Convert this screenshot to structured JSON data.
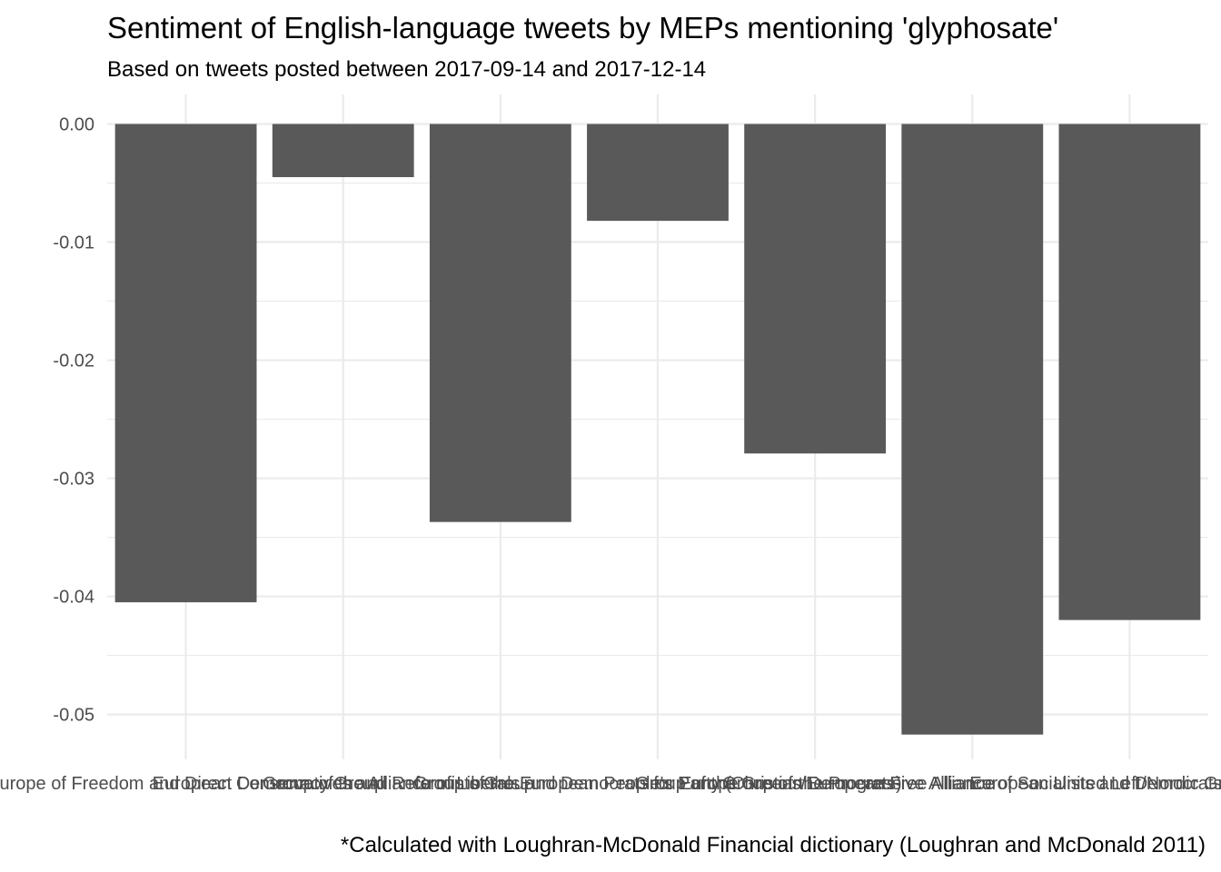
{
  "chart_data": {
    "type": "bar",
    "title": "Sentiment of English-language tweets by MEPs mentioning 'glyphosate'",
    "subtitle": "Based on tweets posted between 2017-09-14 and 2017-12-14",
    "caption": "*Calculated with Loughran-McDonald Financial dictionary (Loughran and McDonald 2011)",
    "xlabel": "",
    "ylabel": "",
    "categories": [
      "Europe of Freedom and Direct Democracy Group",
      "European Conservatives and Reformists Group",
      "Group of the Alliance of Liberals and Democrats for Europe",
      "Group of the European People's Party (Christian Democrats)",
      "Group of the Greens/European Free Alliance",
      "Group of the Progressive Alliance of Socialists and Democrats",
      "European United Left/Nordic Green Left"
    ],
    "values": [
      -0.0405,
      -0.0045,
      -0.0337,
      -0.0082,
      -0.0279,
      -0.0517,
      -0.042
    ],
    "ylim": [
      -0.0538,
      0.0025
    ],
    "yticks": [
      0.0,
      -0.01,
      -0.02,
      -0.03,
      -0.04,
      -0.05
    ],
    "ytick_labels": [
      "0.00",
      "-0.01",
      "-0.02",
      "-0.03",
      "-0.04",
      "-0.05"
    ],
    "bar_color": "#595959",
    "grid_color": "#ebebeb",
    "grid": true,
    "legend": "none"
  }
}
